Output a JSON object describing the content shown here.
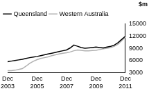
{
  "chart_data": {
    "type": "line",
    "y_label": "$m",
    "categories": [
      "Dec 2003",
      null,
      null,
      null,
      null,
      null,
      null,
      null,
      "Dec 2005",
      null,
      null,
      null,
      null,
      null,
      null,
      null,
      "Dec 2007",
      null,
      null,
      null,
      null,
      null,
      null,
      null,
      "Dec 2009",
      null,
      null,
      null,
      null,
      null,
      null,
      null,
      "Dec 2011"
    ],
    "series": [
      {
        "name": "Queensland",
        "color": "#000000",
        "values": [
          5700,
          5850,
          6000,
          6150,
          6300,
          6500,
          6700,
          6850,
          7000,
          7200,
          7400,
          7600,
          7800,
          8000,
          8200,
          8400,
          8600,
          9100,
          9800,
          9500,
          9200,
          9000,
          9100,
          9200,
          9300,
          9200,
          9100,
          9300,
          9500,
          9800,
          10400,
          11200,
          12000
        ]
      },
      {
        "name": "Western Australia",
        "color": "#b0b0b0",
        "values": [
          3500,
          3500,
          3600,
          3800,
          4000,
          4600,
          5300,
          5800,
          6200,
          6500,
          6700,
          6900,
          7200,
          7400,
          7600,
          7800,
          7900,
          8100,
          8400,
          8600,
          8500,
          8400,
          8400,
          8450,
          8500,
          8700,
          8900,
          9000,
          9200,
          9500,
          10000,
          10900,
          11800
        ]
      }
    ],
    "ylim": [
      3000,
      15000
    ],
    "yticks": [
      3000,
      6000,
      9000,
      12000,
      15000
    ],
    "grid": false,
    "legend": "top-left"
  }
}
